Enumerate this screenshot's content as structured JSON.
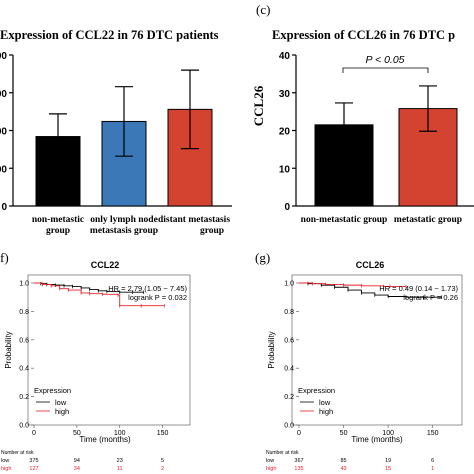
{
  "panels": {
    "b": {
      "title": "Expression of CCL22 in 76 DTC patients",
      "ytick_labels": [
        "00",
        "00",
        "00",
        "00",
        "0"
      ],
      "xlabels": [
        [
          "non-metastic",
          "group"
        ],
        [
          "only lymph node",
          "metastasis group"
        ],
        [
          "distant metastasis",
          "group"
        ]
      ]
    },
    "c": {
      "tag": "(c)",
      "title": "Expression of CCL26 in 76 DTC p",
      "ylabel": "CCL26",
      "ytick_labels": [
        "40",
        "30",
        "20",
        "10",
        "0"
      ],
      "xlabels": [
        "non-metastatic group",
        "metastatic group"
      ],
      "annotation": "P < 0.05"
    },
    "f": {
      "tag": "f)",
      "title": "CCL22",
      "ylabel": "Probability",
      "xlabel": "Time (months)",
      "ytick_labels": [
        "1.0",
        "0.8",
        "0.6",
        "0.4",
        "0.2",
        "0.0"
      ],
      "xtick_labels": [
        "0",
        "50",
        "100",
        "150"
      ],
      "hr_text": "HR = 2.79 (1.05 − 7.45)",
      "logrank_text": "logrank P = 0.032",
      "legend_title": "Expression",
      "legend_low": "low",
      "legend_high": "high",
      "risk_title": "Number at risk",
      "risk_low_label": "low",
      "risk_high_label": "high",
      "risk_low": [
        "375",
        "94",
        "23",
        "5"
      ],
      "risk_high": [
        "127",
        "34",
        "11",
        "2"
      ]
    },
    "g": {
      "tag": "(g)",
      "title": "CCL26",
      "ylabel": "Probability",
      "xlabel": "Time (months)",
      "ytick_labels": [
        "1.0",
        "0.8",
        "0.6",
        "0.4",
        "0.2",
        "0.0"
      ],
      "xtick_labels": [
        "0",
        "50",
        "100",
        "150"
      ],
      "hr_text": "HR = 0.49 (0.14 − 1.73)",
      "logrank_text": "logrank P = 0.26",
      "legend_title": "Expression",
      "legend_low": "low",
      "legend_high": "high",
      "risk_title": "Number at risk",
      "risk_low_label": "low",
      "risk_high_label": "high",
      "risk_low": [
        "367",
        "85",
        "19",
        "6"
      ],
      "risk_high": [
        "135",
        "43",
        "15",
        "1"
      ]
    }
  },
  "colors": {
    "bar_black": "#000000",
    "bar_blue": "#3a78b8",
    "bar_red": "#d4432f",
    "km_low": "#000000",
    "km_high": "#e8202a"
  },
  "chart_data": [
    {
      "type": "bar",
      "categories": [
        "non-metastic group",
        "only lymph node metastasis group",
        "distant metastasis group"
      ],
      "values": [
        0.46,
        0.56,
        0.64
      ],
      "error": [
        0.15,
        0.23,
        0.26
      ],
      "ylim": [
        0,
        1
      ],
      "title": "Expression of CCL22 in 76 DTC patients"
    },
    {
      "type": "bar",
      "categories": [
        "non-metastatic group",
        "metastatic group"
      ],
      "values": [
        21.5,
        25.8
      ],
      "error": [
        5.8,
        6.0
      ],
      "ylabel": "CCL26",
      "ylim": [
        0,
        40
      ],
      "title": "Expression of CCL26 in 76 DTC p",
      "annotation": "P < 0.05"
    },
    {
      "type": "line",
      "title": "CCL22",
      "xlabel": "Time (months)",
      "ylabel": "Probability",
      "xlim": [
        0,
        175
      ],
      "ylim": [
        0,
        1
      ],
      "series": [
        {
          "name": "low",
          "points": [
            [
              0,
              1.0
            ],
            [
              8,
              0.995
            ],
            [
              15,
              0.99
            ],
            [
              25,
              0.985
            ],
            [
              35,
              0.98
            ],
            [
              45,
              0.975
            ],
            [
              55,
              0.965
            ],
            [
              65,
              0.955
            ],
            [
              75,
              0.945
            ],
            [
              85,
              0.94
            ],
            [
              100,
              0.935
            ],
            [
              115,
              0.935
            ],
            [
              128,
              0.935
            ]
          ]
        },
        {
          "name": "high",
          "points": [
            [
              0,
              1.0
            ],
            [
              10,
              0.99
            ],
            [
              20,
              0.98
            ],
            [
              30,
              0.96
            ],
            [
              40,
              0.95
            ],
            [
              55,
              0.93
            ],
            [
              65,
              0.925
            ],
            [
              80,
              0.92
            ],
            [
              98,
              0.915
            ],
            [
              100,
              0.84
            ],
            [
              125,
              0.84
            ],
            [
              152,
              0.84
            ]
          ]
        }
      ]
    },
    {
      "type": "line",
      "title": "CCL26",
      "xlabel": "Time (months)",
      "ylabel": "Probability",
      "xlim": [
        0,
        175
      ],
      "ylim": [
        0,
        1
      ],
      "series": [
        {
          "name": "low",
          "points": [
            [
              0,
              1.0
            ],
            [
              10,
              0.995
            ],
            [
              25,
              0.985
            ],
            [
              40,
              0.97
            ],
            [
              55,
              0.95
            ],
            [
              70,
              0.93
            ],
            [
              85,
              0.915
            ],
            [
              100,
              0.905
            ],
            [
              120,
              0.9
            ],
            [
              140,
              0.9
            ],
            [
              160,
              0.9
            ]
          ]
        },
        {
          "name": "high",
          "points": [
            [
              0,
              1.0
            ],
            [
              15,
              0.995
            ],
            [
              30,
              0.99
            ],
            [
              50,
              0.985
            ],
            [
              70,
              0.98
            ],
            [
              95,
              0.975
            ],
            [
              102,
              0.975
            ],
            [
              120,
              0.975
            ]
          ]
        }
      ]
    }
  ]
}
